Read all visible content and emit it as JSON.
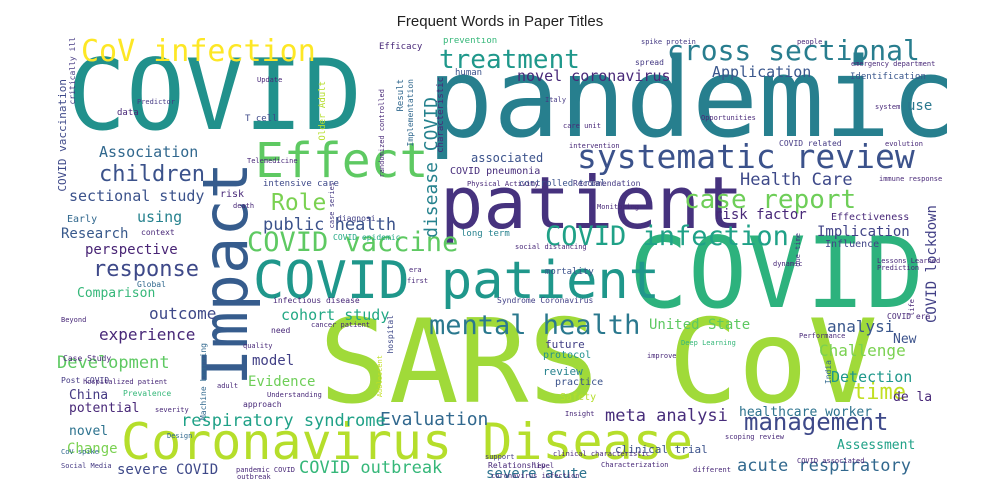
{
  "title": "Frequent Words in Paper Titles",
  "palette": "viridis",
  "words": [
    {
      "text": "COVID"
    },
    {
      "text": "pandemic"
    },
    {
      "text": "SARS CoV"
    },
    {
      "text": "patient"
    },
    {
      "text": "COVID"
    },
    {
      "text": "Coronavirus Disease"
    },
    {
      "text": "Impact"
    },
    {
      "text": "COVID patient"
    },
    {
      "text": "Effect"
    },
    {
      "text": "systematic review"
    },
    {
      "text": "cross sectional"
    },
    {
      "text": "CoV infection"
    },
    {
      "text": "COVID vaccine"
    },
    {
      "text": "COVID infection"
    },
    {
      "text": "mental health"
    },
    {
      "text": "case report"
    },
    {
      "text": "treatment"
    },
    {
      "text": "management"
    },
    {
      "text": "children"
    },
    {
      "text": "Role"
    },
    {
      "text": "response"
    },
    {
      "text": "time"
    },
    {
      "text": "disease COVID"
    },
    {
      "text": "Evaluation"
    },
    {
      "text": "acute respiratory"
    },
    {
      "text": "COVID outbreak"
    },
    {
      "text": "respiratory syndrome"
    },
    {
      "text": "meta analysi"
    },
    {
      "text": "public health"
    },
    {
      "text": "Health Care"
    },
    {
      "text": "Application"
    },
    {
      "text": "novel coronavirus"
    },
    {
      "text": "Association"
    },
    {
      "text": "sectional study"
    },
    {
      "text": "Development"
    },
    {
      "text": "experience"
    },
    {
      "text": "outcome"
    },
    {
      "text": "cohort study"
    },
    {
      "text": "analysi"
    },
    {
      "text": "Challenge"
    },
    {
      "text": "Detection"
    },
    {
      "text": "United State"
    },
    {
      "text": "Implication"
    },
    {
      "text": "risk factor"
    },
    {
      "text": "COVID lockdown"
    },
    {
      "text": "severe COVID"
    },
    {
      "text": "severe acute"
    },
    {
      "text": "healthcare worker"
    },
    {
      "text": "Assessment"
    },
    {
      "text": "using"
    },
    {
      "text": "Research"
    },
    {
      "text": "perspective"
    },
    {
      "text": "Comparison"
    },
    {
      "text": "model"
    },
    {
      "text": "Evidence"
    },
    {
      "text": "Change"
    },
    {
      "text": "China"
    },
    {
      "text": "potential"
    },
    {
      "text": "novel"
    },
    {
      "text": "use"
    },
    {
      "text": "New"
    },
    {
      "text": "de la"
    },
    {
      "text": "associated"
    },
    {
      "text": "COVID vaccination"
    },
    {
      "text": "Effectiveness"
    },
    {
      "text": "Influence"
    },
    {
      "text": "clinical trial"
    },
    {
      "text": "future"
    },
    {
      "text": "review"
    },
    {
      "text": "practice"
    },
    {
      "text": "Safety"
    },
    {
      "text": "protocol"
    },
    {
      "text": "COVID pneumonia"
    },
    {
      "text": "controlled trial"
    },
    {
      "text": "intensive care"
    },
    {
      "text": "Early"
    },
    {
      "text": "risk"
    },
    {
      "text": "prevention"
    },
    {
      "text": "Efficacy"
    },
    {
      "text": "Identification"
    },
    {
      "text": "human"
    },
    {
      "text": "spread"
    },
    {
      "text": "data"
    },
    {
      "text": "T cell"
    },
    {
      "text": "Result"
    },
    {
      "text": "Implementation"
    },
    {
      "text": "characteristic"
    },
    {
      "text": "Older Adult"
    },
    {
      "text": "long term"
    },
    {
      "text": "mortality"
    },
    {
      "text": "infectious disease"
    },
    {
      "text": "Syndrome Coronavirus"
    },
    {
      "text": "Global"
    },
    {
      "text": "need"
    },
    {
      "text": "Case Study"
    },
    {
      "text": "Post COVID"
    },
    {
      "text": "Prevalence"
    },
    {
      "text": "approach"
    },
    {
      "text": "Relationship"
    },
    {
      "text": "COVID era"
    },
    {
      "text": "Recommendation"
    },
    {
      "text": "COVID related"
    },
    {
      "text": "hospital"
    },
    {
      "text": "India"
    },
    {
      "text": "Machine Learning"
    },
    {
      "text": "COVID epidemic"
    },
    {
      "text": "diagnosi"
    },
    {
      "text": "context"
    },
    {
      "text": "critically ill"
    },
    {
      "text": "Predictor"
    },
    {
      "text": "Italy"
    },
    {
      "text": "case series"
    },
    {
      "text": "Social Media"
    },
    {
      "text": "CoV spike"
    },
    {
      "text": "Design"
    },
    {
      "text": "support"
    },
    {
      "text": "pandemic COVID"
    },
    {
      "text": "outbreak"
    },
    {
      "text": "quality"
    },
    {
      "text": "Understanding"
    },
    {
      "text": "adult"
    },
    {
      "text": "improve"
    },
    {
      "text": "Deep Learning"
    },
    {
      "text": "Physical Activity"
    },
    {
      "text": "social distancing"
    },
    {
      "text": "spike protein"
    },
    {
      "text": "people"
    },
    {
      "text": "death"
    },
    {
      "text": "first"
    },
    {
      "text": "era"
    },
    {
      "text": "dynamic"
    },
    {
      "text": "life"
    },
    {
      "text": "due time"
    },
    {
      "text": "Prediction"
    },
    {
      "text": "randomized controlled"
    },
    {
      "text": "care unit"
    },
    {
      "text": "intervention"
    },
    {
      "text": "Insight"
    },
    {
      "text": "Adolescent"
    },
    {
      "text": "Lessons Learned"
    },
    {
      "text": "Performance"
    },
    {
      "text": "Opportunities"
    },
    {
      "text": "Update"
    },
    {
      "text": "system"
    },
    {
      "text": "evolution"
    },
    {
      "text": "emergency department"
    },
    {
      "text": "Telemedicine"
    },
    {
      "text": "Monitoring"
    },
    {
      "text": "cancer patient"
    },
    {
      "text": "scoping review"
    },
    {
      "text": "different"
    },
    {
      "text": "Characterization"
    },
    {
      "text": "coronavirus infection"
    },
    {
      "text": "COVID associated"
    },
    {
      "text": "hospitalized patient"
    },
    {
      "text": "clinical characteristic"
    },
    {
      "text": "immune response"
    },
    {
      "text": "severity"
    },
    {
      "text": "Beyond"
    },
    {
      "text": "level"
    }
  ]
}
